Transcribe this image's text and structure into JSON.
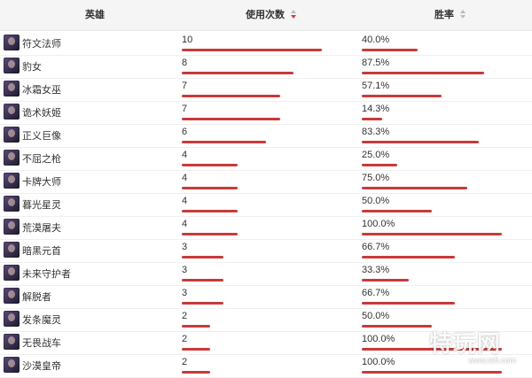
{
  "header": {
    "hero_label": "英雄",
    "uses_label": "使用次数",
    "winrate_label": "胜率"
  },
  "accent_color": "#c93a3a",
  "rows": [
    {
      "name": "符文法师",
      "uses": "10",
      "uses_fraction": 1.0,
      "winrate": "40.0%",
      "winrate_fraction": 0.4
    },
    {
      "name": "豹女",
      "uses": "8",
      "uses_fraction": 0.8,
      "winrate": "87.5%",
      "winrate_fraction": 0.875
    },
    {
      "name": "冰霜女巫",
      "uses": "7",
      "uses_fraction": 0.7,
      "winrate": "57.1%",
      "winrate_fraction": 0.571
    },
    {
      "name": "诡术妖姬",
      "uses": "7",
      "uses_fraction": 0.7,
      "winrate": "14.3%",
      "winrate_fraction": 0.143
    },
    {
      "name": "正义巨像",
      "uses": "6",
      "uses_fraction": 0.6,
      "winrate": "83.3%",
      "winrate_fraction": 0.833
    },
    {
      "name": "不屈之枪",
      "uses": "4",
      "uses_fraction": 0.4,
      "winrate": "25.0%",
      "winrate_fraction": 0.25
    },
    {
      "name": "卡牌大师",
      "uses": "4",
      "uses_fraction": 0.4,
      "winrate": "75.0%",
      "winrate_fraction": 0.75
    },
    {
      "name": "暮光星灵",
      "uses": "4",
      "uses_fraction": 0.4,
      "winrate": "50.0%",
      "winrate_fraction": 0.5
    },
    {
      "name": "荒漠屠夫",
      "uses": "4",
      "uses_fraction": 0.4,
      "winrate": "100.0%",
      "winrate_fraction": 1.0
    },
    {
      "name": "暗黑元首",
      "uses": "3",
      "uses_fraction": 0.3,
      "winrate": "66.7%",
      "winrate_fraction": 0.667
    },
    {
      "name": "未来守护者",
      "uses": "3",
      "uses_fraction": 0.3,
      "winrate": "33.3%",
      "winrate_fraction": 0.333
    },
    {
      "name": "解脱者",
      "uses": "3",
      "uses_fraction": 0.3,
      "winrate": "66.7%",
      "winrate_fraction": 0.667
    },
    {
      "name": "发条魔灵",
      "uses": "2",
      "uses_fraction": 0.2,
      "winrate": "50.0%",
      "winrate_fraction": 0.5
    },
    {
      "name": "无畏战车",
      "uses": "2",
      "uses_fraction": 0.2,
      "winrate": "100.0%",
      "winrate_fraction": 1.0
    },
    {
      "name": "沙漠皇帝",
      "uses": "2",
      "uses_fraction": 0.2,
      "winrate": "100.0%",
      "winrate_fraction": 1.0
    }
  ],
  "watermark": {
    "logo_text": "特玩网",
    "url_text": "www.te5.com"
  }
}
